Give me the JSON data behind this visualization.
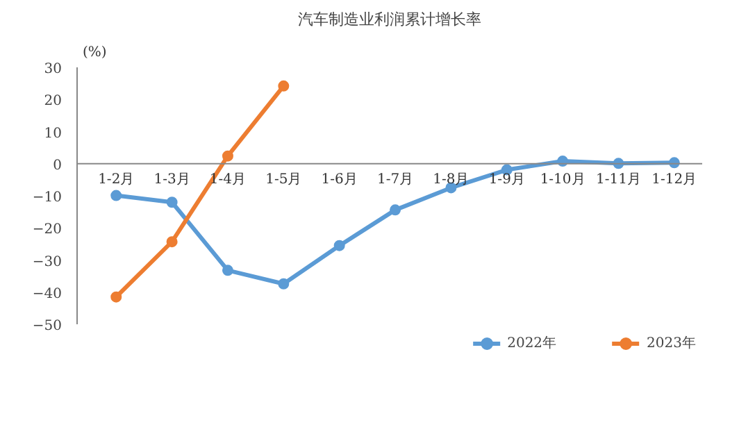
{
  "chart_data": {
    "type": "line",
    "title": "汽车制造业利润累计增长率",
    "ylabel": "(%)",
    "categories": [
      "1-2月",
      "1-3月",
      "1-4月",
      "1-5月",
      "1-6月",
      "1-7月",
      "1-8月",
      "1-9月",
      "1-10月",
      "1-11月",
      "1-12月"
    ],
    "series": [
      {
        "name": "2022年",
        "color": "#5b9bd5",
        "values": [
          -9.9,
          -12.0,
          -33.2,
          -37.4,
          -25.5,
          -14.4,
          -7.5,
          -1.9,
          0.8,
          0.1,
          0.3
        ]
      },
      {
        "name": "2023年",
        "color": "#ed7d31",
        "values": [
          -41.5,
          -24.3,
          2.4,
          24.2,
          null,
          null,
          null,
          null,
          null,
          null,
          null
        ]
      }
    ],
    "ylim": [
      -50,
      30
    ],
    "yticks": [
      -50,
      -40,
      -30,
      -20,
      -10,
      0,
      10,
      20,
      30
    ],
    "grid": false,
    "legend": "bottom",
    "marker": "circle",
    "line_style": "solid"
  }
}
